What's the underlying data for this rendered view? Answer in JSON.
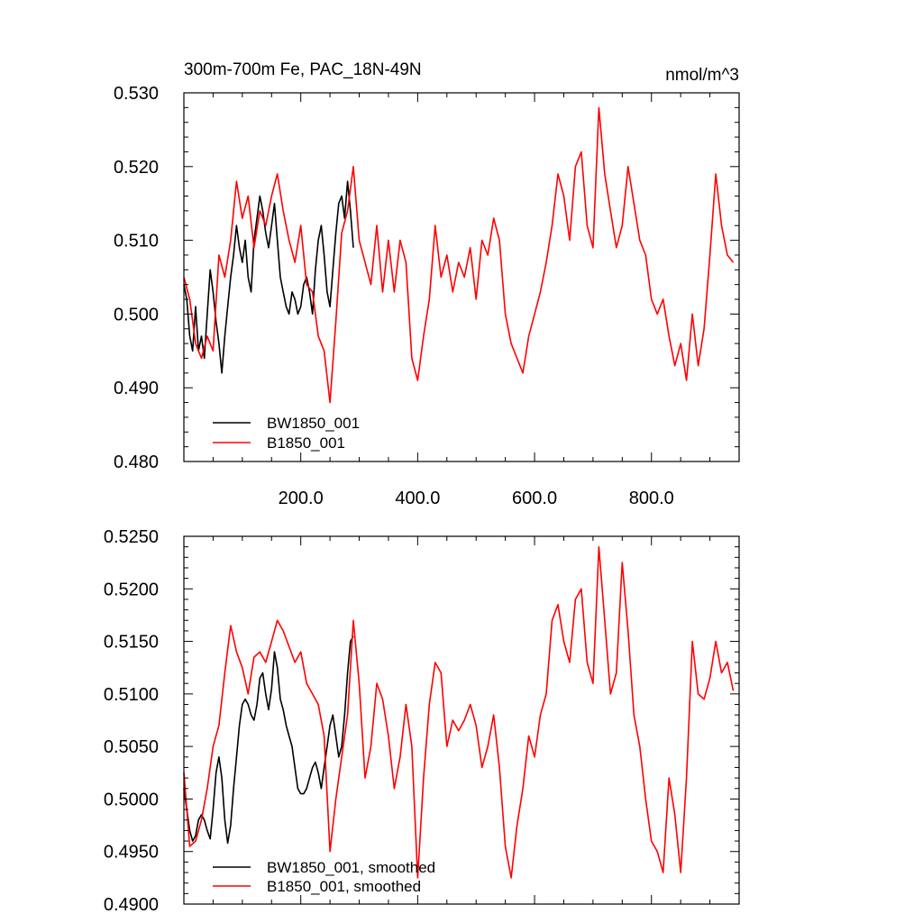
{
  "figure": {
    "title_left": "300m-700m Fe, PAC_18N-49N",
    "title_right": "nmol/m^3"
  },
  "chart_data": [
    {
      "type": "line",
      "title": "300m-700m Fe, PAC_18N-49N",
      "units": "nmol/m^3",
      "xlabel": "",
      "ylabel": "",
      "xlim": [
        0,
        950
      ],
      "ylim": [
        0.48,
        0.53
      ],
      "x_ticks": [
        "200.0",
        "400.0",
        "600.0",
        "800.0"
      ],
      "y_ticks": [
        "0.480",
        "0.490",
        "0.500",
        "0.510",
        "0.520",
        "0.530"
      ],
      "grid": false,
      "legend_position": "bottom-left",
      "series": [
        {
          "name": "BW1850_001",
          "color": "#000000",
          "x": [
            0,
            5,
            10,
            15,
            20,
            25,
            30,
            35,
            40,
            45,
            50,
            55,
            60,
            65,
            70,
            75,
            80,
            85,
            90,
            95,
            100,
            105,
            110,
            115,
            120,
            125,
            130,
            135,
            140,
            145,
            150,
            155,
            160,
            165,
            170,
            175,
            180,
            185,
            190,
            195,
            200,
            205,
            210,
            215,
            220,
            225,
            230,
            235,
            240,
            245,
            250,
            255,
            260,
            265,
            270,
            275,
            280,
            285,
            290
          ],
          "y": [
            0.504,
            0.502,
            0.497,
            0.495,
            0.501,
            0.495,
            0.497,
            0.494,
            0.5,
            0.506,
            0.503,
            0.499,
            0.496,
            0.492,
            0.497,
            0.501,
            0.505,
            0.508,
            0.512,
            0.509,
            0.507,
            0.51,
            0.505,
            0.503,
            0.51,
            0.513,
            0.516,
            0.514,
            0.511,
            0.509,
            0.512,
            0.515,
            0.51,
            0.505,
            0.503,
            0.501,
            0.5,
            0.503,
            0.502,
            0.5,
            0.501,
            0.504,
            0.505,
            0.503,
            0.5,
            0.506,
            0.51,
            0.512,
            0.508,
            0.503,
            0.501,
            0.506,
            0.511,
            0.515,
            0.516,
            0.513,
            0.518,
            0.514,
            0.509
          ]
        },
        {
          "name": "B1850_001",
          "color": "#ff0000",
          "x": [
            0,
            10,
            20,
            30,
            40,
            50,
            60,
            70,
            80,
            90,
            100,
            110,
            120,
            130,
            140,
            150,
            160,
            170,
            180,
            190,
            200,
            210,
            220,
            230,
            240,
            250,
            260,
            270,
            280,
            290,
            300,
            310,
            320,
            330,
            340,
            350,
            360,
            370,
            380,
            390,
            400,
            410,
            420,
            430,
            440,
            450,
            460,
            470,
            480,
            490,
            500,
            510,
            520,
            530,
            540,
            550,
            560,
            570,
            580,
            590,
            600,
            610,
            620,
            630,
            640,
            650,
            660,
            670,
            680,
            690,
            700,
            710,
            720,
            730,
            740,
            750,
            760,
            770,
            780,
            790,
            800,
            810,
            820,
            830,
            840,
            850,
            860,
            870,
            880,
            890,
            900,
            910,
            920,
            930,
            940
          ],
          "y": [
            0.505,
            0.502,
            0.496,
            0.494,
            0.497,
            0.495,
            0.508,
            0.505,
            0.51,
            0.518,
            0.513,
            0.516,
            0.509,
            0.514,
            0.512,
            0.516,
            0.519,
            0.514,
            0.51,
            0.507,
            0.512,
            0.504,
            0.503,
            0.497,
            0.495,
            0.488,
            0.499,
            0.511,
            0.514,
            0.52,
            0.51,
            0.507,
            0.504,
            0.512,
            0.503,
            0.51,
            0.503,
            0.51,
            0.507,
            0.494,
            0.491,
            0.497,
            0.502,
            0.512,
            0.505,
            0.508,
            0.503,
            0.507,
            0.505,
            0.509,
            0.502,
            0.51,
            0.508,
            0.513,
            0.51,
            0.5,
            0.496,
            0.494,
            0.492,
            0.497,
            0.5,
            0.503,
            0.507,
            0.512,
            0.519,
            0.516,
            0.51,
            0.52,
            0.522,
            0.512,
            0.509,
            0.528,
            0.519,
            0.514,
            0.509,
            0.512,
            0.52,
            0.515,
            0.51,
            0.508,
            0.502,
            0.5,
            0.502,
            0.497,
            0.493,
            0.496,
            0.491,
            0.5,
            0.493,
            0.498,
            0.508,
            0.519,
            0.512,
            0.508,
            0.507
          ]
        }
      ]
    },
    {
      "type": "line",
      "title": "",
      "xlabel": "",
      "ylabel": "",
      "xlim": [
        0,
        950
      ],
      "ylim": [
        0.49,
        0.525
      ],
      "x_ticks": [],
      "y_ticks": [
        "0.4900",
        "0.4950",
        "0.5000",
        "0.5050",
        "0.5100",
        "0.5150",
        "0.5200",
        "0.5250"
      ],
      "grid": false,
      "legend_position": "bottom-left",
      "series": [
        {
          "name": "BW1850_001, smoothed",
          "color": "#000000",
          "x": [
            0,
            5,
            10,
            15,
            20,
            25,
            30,
            35,
            40,
            45,
            50,
            55,
            60,
            65,
            70,
            75,
            80,
            85,
            90,
            95,
            100,
            105,
            110,
            115,
            120,
            125,
            130,
            135,
            140,
            145,
            150,
            155,
            160,
            165,
            170,
            175,
            180,
            185,
            190,
            195,
            200,
            205,
            210,
            215,
            220,
            225,
            230,
            235,
            240,
            245,
            250,
            255,
            260,
            265,
            270,
            275,
            280,
            285,
            290
          ],
          "y": [
            0.501,
            0.499,
            0.497,
            0.496,
            0.4965,
            0.498,
            0.4985,
            0.498,
            0.497,
            0.4962,
            0.499,
            0.5025,
            0.504,
            0.502,
            0.498,
            0.4958,
            0.4975,
            0.501,
            0.504,
            0.507,
            0.509,
            0.5095,
            0.509,
            0.508,
            0.5075,
            0.509,
            0.5115,
            0.512,
            0.51,
            0.5085,
            0.5105,
            0.514,
            0.5125,
            0.5095,
            0.5085,
            0.507,
            0.506,
            0.505,
            0.503,
            0.501,
            0.5005,
            0.5005,
            0.501,
            0.502,
            0.503,
            0.5035,
            0.5025,
            0.501,
            0.503,
            0.505,
            0.507,
            0.508,
            0.506,
            0.504,
            0.505,
            0.508,
            0.512,
            0.515,
            0.5155
          ]
        },
        {
          "name": "B1850_001, smoothed",
          "color": "#ff0000",
          "x": [
            0,
            10,
            20,
            30,
            40,
            50,
            60,
            70,
            80,
            90,
            100,
            110,
            120,
            130,
            140,
            150,
            160,
            170,
            180,
            190,
            200,
            210,
            220,
            230,
            240,
            250,
            260,
            270,
            280,
            290,
            300,
            310,
            320,
            330,
            340,
            350,
            360,
            370,
            380,
            390,
            400,
            410,
            420,
            430,
            440,
            450,
            460,
            470,
            480,
            490,
            500,
            510,
            520,
            530,
            540,
            550,
            560,
            570,
            580,
            590,
            600,
            610,
            620,
            630,
            640,
            650,
            660,
            670,
            680,
            690,
            700,
            710,
            720,
            730,
            740,
            750,
            760,
            770,
            780,
            790,
            800,
            810,
            820,
            830,
            840,
            850,
            860,
            870,
            880,
            890,
            900,
            910,
            920,
            930,
            940
          ],
          "y": [
            0.5025,
            0.4955,
            0.496,
            0.498,
            0.501,
            0.505,
            0.507,
            0.512,
            0.5165,
            0.514,
            0.5125,
            0.51,
            0.5135,
            0.514,
            0.513,
            0.515,
            0.517,
            0.516,
            0.5145,
            0.513,
            0.514,
            0.511,
            0.51,
            0.509,
            0.506,
            0.495,
            0.5,
            0.504,
            0.508,
            0.517,
            0.511,
            0.502,
            0.505,
            0.511,
            0.5095,
            0.506,
            0.501,
            0.504,
            0.509,
            0.505,
            0.4925,
            0.502,
            0.509,
            0.513,
            0.512,
            0.505,
            0.5075,
            0.5065,
            0.5075,
            0.509,
            0.507,
            0.503,
            0.505,
            0.508,
            0.503,
            0.4955,
            0.4925,
            0.4975,
            0.501,
            0.506,
            0.504,
            0.508,
            0.51,
            0.517,
            0.5185,
            0.515,
            0.513,
            0.519,
            0.52,
            0.513,
            0.511,
            0.524,
            0.517,
            0.51,
            0.512,
            0.5225,
            0.516,
            0.508,
            0.505,
            0.5,
            0.496,
            0.495,
            0.493,
            0.502,
            0.4985,
            0.493,
            0.502,
            0.515,
            0.51,
            0.5095,
            0.5115,
            0.515,
            0.512,
            0.513,
            0.5103
          ]
        }
      ]
    }
  ]
}
